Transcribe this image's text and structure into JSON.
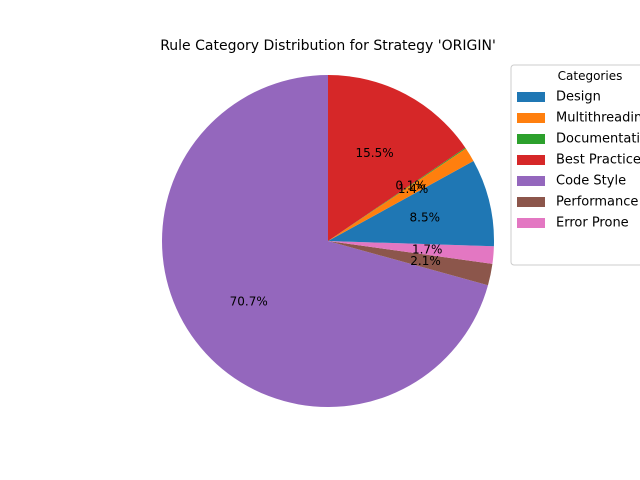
{
  "chart_data": {
    "type": "pie",
    "title": "Rule Category Distribution for Strategy 'ORIGIN'",
    "legend": {
      "title": "Categories",
      "placement": "top-right, outside plot (clipped at figure edge)"
    },
    "start_angle_deg": 90,
    "direction": "counterclockwise",
    "slices": [
      {
        "label": "Code Style",
        "value": 70.7,
        "pct_label": "70.7%",
        "color": "#9467bd"
      },
      {
        "label": "Performance",
        "value": 2.1,
        "pct_label": "2.1%",
        "color": "#8c564b"
      },
      {
        "label": "Error Prone",
        "value": 1.7,
        "pct_label": "1.7%",
        "color": "#e377c2"
      },
      {
        "label": "Design",
        "value": 8.5,
        "pct_label": "8.5%",
        "color": "#1f77b4"
      },
      {
        "label": "Multithreading",
        "value": 1.4,
        "pct_label": "1.4%",
        "color": "#ff7f0e"
      },
      {
        "label": "Documentation",
        "value": 0.1,
        "pct_label": "0.1%",
        "color": "#2ca02c"
      },
      {
        "label": "Best Practices",
        "value": 15.5,
        "pct_label": "15.5%",
        "color": "#d62728"
      }
    ],
    "legend_order": [
      "Design",
      "Multithreading",
      "Documentation",
      "Best Practices",
      "Code Style",
      "Performance",
      "Error Prone"
    ]
  }
}
